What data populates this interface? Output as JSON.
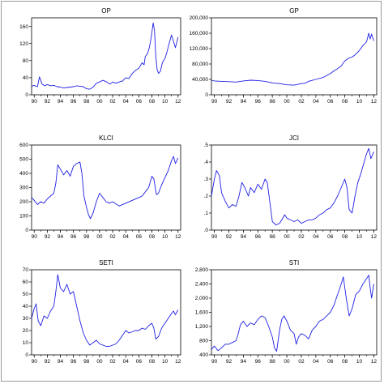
{
  "figure": {
    "line_color": "#1f1fe6",
    "axis_color": "#000000"
  },
  "chart_data": [
    {
      "type": "line",
      "title": "OP",
      "ylim": [
        0,
        180
      ],
      "yticks": [
        0,
        40,
        80,
        120,
        160
      ],
      "ytick_labels": [
        "0",
        "40",
        "80",
        "120",
        "160"
      ],
      "xlim": [
        1989.6,
        2012.4
      ],
      "xticks": [
        1990,
        1992,
        1994,
        1996,
        1998,
        2000,
        2002,
        2004,
        2006,
        2008,
        2010,
        2012
      ],
      "xtick_labels": [
        "90",
        "92",
        "94",
        "96",
        "98",
        "00",
        "02",
        "04",
        "06",
        "08",
        "10",
        "12"
      ],
      "series": [
        {
          "x": [
            1989.6,
            1990.0,
            1990.5,
            1990.8,
            1991.2,
            1991.6,
            1992.0,
            1992.5,
            1993.0,
            1993.5,
            1994.0,
            1994.5,
            1995.0,
            1995.5,
            1996.0,
            1996.5,
            1997.0,
            1997.5,
            1998.0,
            1998.5,
            1999.0,
            1999.5,
            2000.0,
            2000.5,
            2000.8,
            2001.2,
            2001.6,
            2002.0,
            2002.5,
            2003.0,
            2003.5,
            2004.0,
            2004.5,
            2005.0,
            2005.5,
            2006.0,
            2006.5,
            2006.8,
            2007.0,
            2007.3,
            2007.6,
            2007.9,
            2008.2,
            2008.4,
            2008.6,
            2008.8,
            2009.0,
            2009.3,
            2009.6,
            2010.0,
            2010.3,
            2010.6,
            2011.0,
            2011.3,
            2011.6,
            2012.0
          ],
          "y": [
            20,
            22,
            19,
            42,
            25,
            21,
            24,
            21,
            22,
            19,
            18,
            16,
            17,
            18,
            19,
            21,
            20,
            19,
            14,
            13,
            18,
            27,
            30,
            34,
            32,
            29,
            25,
            30,
            27,
            30,
            32,
            40,
            38,
            50,
            57,
            62,
            75,
            70,
            90,
            95,
            110,
            135,
            168,
            150,
            90,
            60,
            50,
            55,
            75,
            85,
            100,
            118,
            140,
            125,
            110,
            135
          ]
        }
      ]
    },
    {
      "type": "line",
      "title": "GP",
      "ylim": [
        0,
        200000
      ],
      "yticks": [
        0,
        40000,
        80000,
        120000,
        160000,
        200000
      ],
      "ytick_labels": [
        "0",
        "40,000",
        "80,000",
        "120,000",
        "160,000",
        "200,000"
      ],
      "xlim": [
        1989.6,
        2012.4
      ],
      "xticks": [
        1990,
        1992,
        1994,
        1996,
        1998,
        2000,
        2002,
        2004,
        2006,
        2008,
        2010,
        2012
      ],
      "xtick_labels": [
        "90",
        "92",
        "94",
        "96",
        "98",
        "00",
        "02",
        "04",
        "06",
        "08",
        "10",
        "12"
      ],
      "series": [
        {
          "x": [
            1989.6,
            1990.0,
            1991.0,
            1992.0,
            1993.0,
            1994.0,
            1995.0,
            1996.0,
            1997.0,
            1998.0,
            1999.0,
            2000.0,
            2001.0,
            2002.0,
            2002.5,
            2003.0,
            2004.0,
            2005.0,
            2006.0,
            2006.5,
            2007.0,
            2007.5,
            2008.0,
            2008.5,
            2009.0,
            2009.5,
            2010.0,
            2010.5,
            2011.0,
            2011.3,
            2011.5,
            2011.7,
            2012.0
          ],
          "y": [
            38000,
            36000,
            35000,
            34000,
            33000,
            36000,
            38000,
            37000,
            35000,
            31000,
            29000,
            26000,
            25000,
            29000,
            30000,
            35000,
            40000,
            45000,
            55000,
            62000,
            68000,
            75000,
            88000,
            95000,
            98000,
            105000,
            115000,
            128000,
            138000,
            160000,
            145000,
            158000,
            140000
          ]
        }
      ]
    },
    {
      "type": "line",
      "title": "KLCI",
      "ylim": [
        0,
        600
      ],
      "yticks": [
        0,
        100,
        200,
        300,
        400,
        500,
        600
      ],
      "ytick_labels": [
        "0",
        "100",
        "200",
        "300",
        "400",
        "500",
        "600"
      ],
      "xlim": [
        1989.6,
        2012.4
      ],
      "xticks": [
        1990,
        1992,
        1994,
        1996,
        1998,
        2000,
        2002,
        2004,
        2006,
        2008,
        2010,
        2012
      ],
      "xtick_labels": [
        "90",
        "92",
        "94",
        "96",
        "98",
        "00",
        "02",
        "04",
        "06",
        "08",
        "10",
        "12"
      ],
      "series": [
        {
          "x": [
            1989.6,
            1990.0,
            1990.5,
            1991.0,
            1991.5,
            1992.0,
            1992.5,
            1993.0,
            1993.3,
            1993.6,
            1994.0,
            1994.5,
            1995.0,
            1995.5,
            1996.0,
            1996.5,
            1997.0,
            1997.3,
            1997.6,
            1998.0,
            1998.3,
            1998.6,
            1999.0,
            1999.5,
            2000.0,
            2000.5,
            2001.0,
            2001.5,
            2002.0,
            2003.0,
            2004.0,
            2005.0,
            2006.0,
            2006.5,
            2007.0,
            2007.5,
            2008.0,
            2008.3,
            2008.7,
            2009.0,
            2009.5,
            2010.0,
            2010.5,
            2011.0,
            2011.3,
            2011.6,
            2012.0
          ],
          "y": [
            230,
            210,
            180,
            200,
            190,
            220,
            240,
            260,
            330,
            460,
            430,
            390,
            420,
            380,
            450,
            470,
            480,
            400,
            240,
            160,
            110,
            80,
            120,
            200,
            260,
            230,
            200,
            190,
            200,
            170,
            190,
            210,
            230,
            240,
            270,
            300,
            380,
            360,
            250,
            260,
            320,
            370,
            420,
            490,
            520,
            470,
            510
          ]
        }
      ]
    },
    {
      "type": "line",
      "title": "JCI",
      "ylim": [
        0,
        0.5
      ],
      "yticks": [
        0,
        0.1,
        0.2,
        0.3,
        0.4,
        0.5
      ],
      "ytick_labels": [
        ".0",
        ".1",
        ".2",
        ".3",
        ".4",
        ".5"
      ],
      "xlim": [
        1989.6,
        2012.4
      ],
      "xticks": [
        1990,
        1992,
        1994,
        1996,
        1998,
        2000,
        2002,
        2004,
        2006,
        2008,
        2010,
        2012
      ],
      "xtick_labels": [
        "90",
        "92",
        "94",
        "96",
        "98",
        "00",
        "02",
        "04",
        "06",
        "08",
        "10",
        "12"
      ],
      "series": [
        {
          "x": [
            1989.6,
            1990.0,
            1990.3,
            1990.7,
            1991.0,
            1991.5,
            1992.0,
            1992.5,
            1993.0,
            1993.4,
            1993.8,
            1994.2,
            1994.7,
            1995.0,
            1995.5,
            1996.0,
            1996.5,
            1997.0,
            1997.3,
            1997.7,
            1998.0,
            1998.5,
            1999.0,
            1999.3,
            1999.7,
            2000.0,
            2000.5,
            2001.0,
            2001.5,
            2002.0,
            2002.5,
            2003.0,
            2003.5,
            2004.0,
            2004.5,
            2005.0,
            2005.5,
            2006.0,
            2006.5,
            2007.0,
            2007.5,
            2008.0,
            2008.3,
            2008.6,
            2009.0,
            2009.4,
            2009.8,
            2010.2,
            2010.6,
            2011.0,
            2011.3,
            2011.6,
            2012.0
          ],
          "y": [
            0.2,
            0.3,
            0.35,
            0.32,
            0.22,
            0.17,
            0.13,
            0.15,
            0.14,
            0.2,
            0.28,
            0.25,
            0.2,
            0.25,
            0.22,
            0.27,
            0.24,
            0.3,
            0.28,
            0.15,
            0.05,
            0.03,
            0.04,
            0.06,
            0.09,
            0.07,
            0.06,
            0.05,
            0.06,
            0.04,
            0.05,
            0.06,
            0.06,
            0.07,
            0.09,
            0.1,
            0.12,
            0.13,
            0.16,
            0.2,
            0.25,
            0.3,
            0.25,
            0.12,
            0.1,
            0.2,
            0.28,
            0.33,
            0.39,
            0.45,
            0.48,
            0.42,
            0.46
          ]
        }
      ]
    },
    {
      "type": "line",
      "title": "SETI",
      "ylim": [
        0,
        70
      ],
      "yticks": [
        0,
        10,
        20,
        30,
        40,
        50,
        60,
        70
      ],
      "ytick_labels": [
        "0",
        "10",
        "20",
        "30",
        "40",
        "50",
        "60",
        "70"
      ],
      "xlim": [
        1989.6,
        2012.4
      ],
      "xticks": [
        1990,
        1992,
        1994,
        1996,
        1998,
        2000,
        2002,
        2004,
        2006,
        2008,
        2010,
        2012
      ],
      "xtick_labels": [
        "90",
        "92",
        "94",
        "96",
        "98",
        "00",
        "02",
        "04",
        "06",
        "08",
        "10",
        "12"
      ],
      "series": [
        {
          "x": [
            1989.6,
            1990.0,
            1990.3,
            1990.6,
            1991.0,
            1991.5,
            1992.0,
            1992.5,
            1993.0,
            1993.3,
            1993.6,
            1994.0,
            1994.5,
            1995.0,
            1995.5,
            1996.0,
            1996.5,
            1997.0,
            1997.5,
            1998.0,
            1998.5,
            1999.0,
            1999.5,
            2000.0,
            2000.5,
            2001.0,
            2001.5,
            2002.0,
            2002.5,
            2003.0,
            2003.5,
            2004.0,
            2004.5,
            2005.0,
            2005.5,
            2006.0,
            2006.5,
            2007.0,
            2007.5,
            2008.0,
            2008.3,
            2008.6,
            2009.0,
            2009.5,
            2010.0,
            2010.5,
            2011.0,
            2011.3,
            2011.6,
            2012.0
          ],
          "y": [
            30,
            38,
            42,
            28,
            24,
            32,
            30,
            36,
            40,
            52,
            66,
            55,
            52,
            58,
            50,
            52,
            40,
            28,
            18,
            12,
            8,
            10,
            12,
            9,
            8,
            7,
            7,
            8,
            9,
            12,
            16,
            20,
            18,
            19,
            20,
            20,
            22,
            21,
            24,
            26,
            22,
            13,
            15,
            22,
            26,
            30,
            34,
            36,
            33,
            37
          ]
        }
      ]
    },
    {
      "type": "line",
      "title": "STI",
      "ylim": [
        400,
        2800
      ],
      "yticks": [
        400,
        800,
        1200,
        1600,
        2000,
        2400,
        2800
      ],
      "ytick_labels": [
        "400",
        "800",
        "1,200",
        "1,600",
        "2,000",
        "2,400",
        "2,800"
      ],
      "xlim": [
        1989.6,
        2012.4
      ],
      "xticks": [
        1990,
        1992,
        1994,
        1996,
        1998,
        2000,
        2002,
        2004,
        2006,
        2008,
        2010,
        2012
      ],
      "xtick_labels": [
        "90",
        "92",
        "94",
        "96",
        "98",
        "00",
        "02",
        "04",
        "06",
        "08",
        "10",
        "12"
      ],
      "series": [
        {
          "x": [
            1989.6,
            1990.0,
            1990.5,
            1991.0,
            1991.5,
            1992.0,
            1992.5,
            1993.0,
            1993.3,
            1993.6,
            1994.0,
            1994.5,
            1995.0,
            1995.5,
            1996.0,
            1996.5,
            1997.0,
            1997.5,
            1998.0,
            1998.3,
            1998.6,
            1999.0,
            1999.3,
            1999.6,
            2000.0,
            2000.5,
            2001.0,
            2001.3,
            2001.6,
            2002.0,
            2002.5,
            2003.0,
            2003.5,
            2004.0,
            2004.5,
            2005.0,
            2005.5,
            2006.0,
            2006.5,
            2007.0,
            2007.5,
            2007.8,
            2008.2,
            2008.6,
            2009.0,
            2009.5,
            2010.0,
            2010.5,
            2011.0,
            2011.3,
            2011.5,
            2011.7,
            2012.0
          ],
          "y": [
            550,
            650,
            520,
            600,
            700,
            700,
            750,
            800,
            1000,
            1250,
            1350,
            1200,
            1300,
            1250,
            1400,
            1500,
            1450,
            1200,
            900,
            600,
            500,
            1100,
            1400,
            1500,
            1350,
            1100,
            1000,
            700,
            900,
            1000,
            950,
            850,
            1100,
            1200,
            1350,
            1400,
            1500,
            1600,
            1800,
            2100,
            2400,
            2600,
            2000,
            1500,
            1700,
            2100,
            2200,
            2400,
            2550,
            2650,
            2300,
            2000,
            2400
          ]
        }
      ]
    }
  ]
}
